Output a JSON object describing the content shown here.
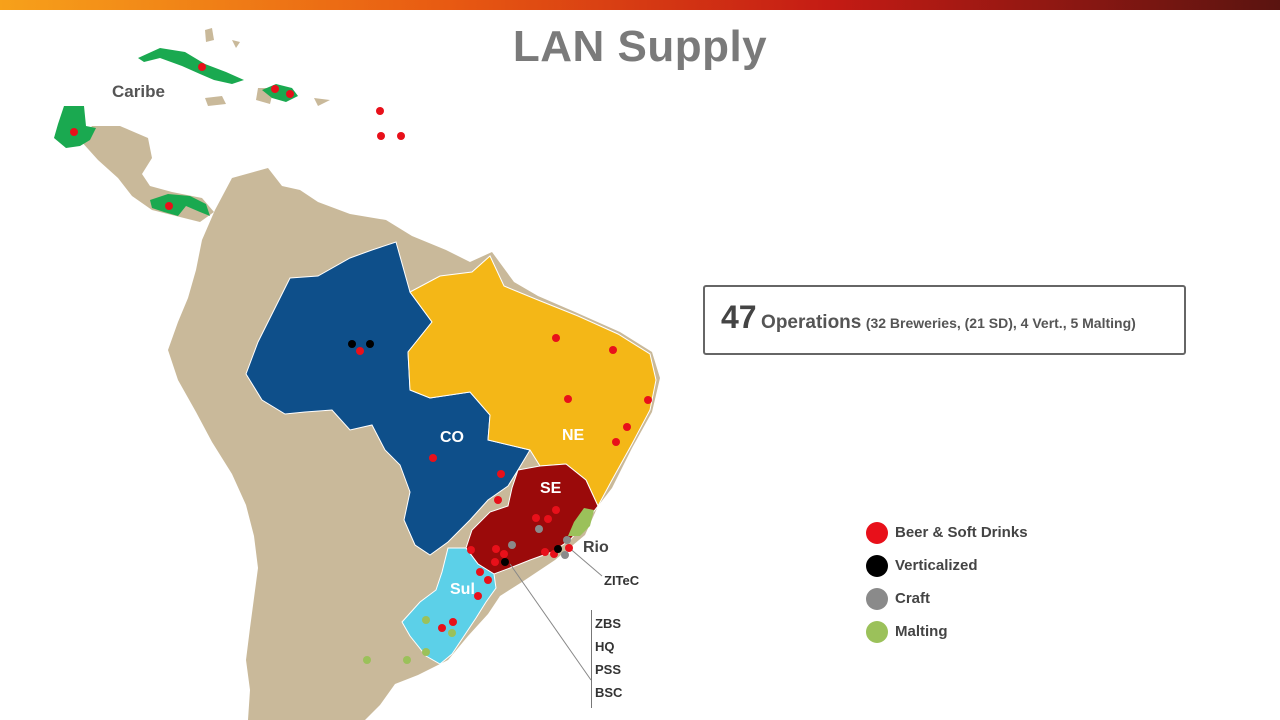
{
  "title": "LAN Supply",
  "regions": {
    "caribe": "Caribe",
    "co": "CO",
    "ne": "NE",
    "se": "SE",
    "sul": "Sul",
    "rio": "Rio",
    "zitec": "ZITeC"
  },
  "operations": {
    "count": "47",
    "label": "Operations",
    "detail": "(32 Breweries, (21 SD), 4 Vert., 5 Malting)"
  },
  "legend": [
    {
      "label": "Beer & Soft Drinks",
      "color": "#e8101a"
    },
    {
      "label": "Verticalized",
      "color": "#000000"
    },
    {
      "label": "Craft",
      "color": "#8a8a8a"
    },
    {
      "label": "Malting",
      "color": "#9bc15a"
    }
  ],
  "sites": [
    "ZBS",
    "HQ",
    "PSS",
    "BSC"
  ],
  "colors": {
    "land": "#c9b99a",
    "caribe": "#1aa950",
    "co": "#0e4f8a",
    "ne": "#f4b717",
    "se": "#9b0a0a",
    "sul": "#5cd0e8",
    "rio": "#9bc15a"
  }
}
